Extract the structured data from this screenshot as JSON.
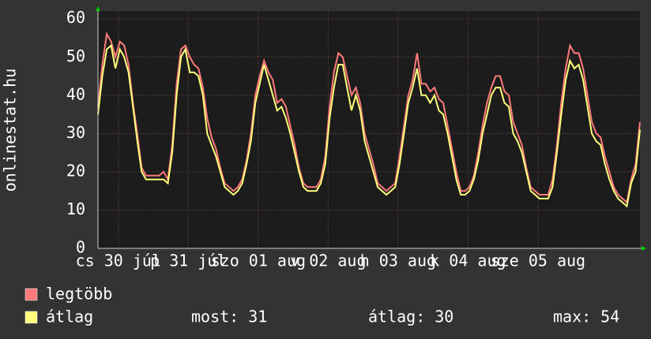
{
  "chart_data": {
    "type": "line",
    "y_label": "onlinestat.hu",
    "x": [
      5,
      6.5,
      8,
      9.5,
      11,
      12.5,
      14,
      15.5,
      17,
      18.5,
      20,
      21.5,
      23,
      24.5,
      26,
      27.5,
      29,
      30.5,
      32,
      33.5,
      35,
      36.5,
      38,
      39.5,
      41,
      42.5,
      44,
      45.5,
      47,
      48.5,
      50,
      51.5,
      53,
      54.5,
      56,
      57.5,
      59,
      60.5,
      62,
      63.5,
      65,
      66.5,
      68,
      69.5,
      71,
      72.5,
      74,
      75.5,
      77,
      78.5,
      80,
      81.5,
      83,
      84.5,
      86,
      87.5,
      89,
      90.5,
      92,
      93.5,
      95,
      96.5,
      98,
      99.5,
      101,
      102.5,
      104,
      105.5,
      107,
      108.5,
      110,
      111.5,
      113,
      114.5,
      116,
      117.5,
      119,
      120.5,
      122,
      123.5,
      125,
      126.5,
      128,
      129.5,
      131,
      132.5,
      134,
      135.5,
      137,
      138.5,
      140,
      141.5,
      143,
      144.5,
      146,
      147.5,
      149,
      150.5,
      152,
      153.5,
      155,
      156.5,
      158,
      159.5,
      161,
      162.5,
      164,
      165.5,
      167,
      168.5,
      170,
      171.5,
      173,
      174.5,
      176,
      177.5,
      179,
      180.5,
      182,
      183.5,
      185,
      186.5,
      188,
      189.5,
      191
    ],
    "series": [
      {
        "name": "legtöbb",
        "color": "#ff7a7a",
        "values": [
          37,
          48,
          56,
          54,
          50,
          54,
          53,
          48,
          38,
          30,
          21,
          19,
          19,
          19,
          19,
          20,
          18,
          27,
          43,
          52,
          53,
          50,
          48,
          47,
          42,
          34,
          29,
          26,
          21,
          17,
          16,
          15,
          16,
          18,
          23,
          30,
          40,
          45,
          49,
          46,
          44,
          38,
          39,
          37,
          32,
          27,
          21,
          17,
          16,
          16,
          16,
          18,
          24,
          37,
          46,
          51,
          50,
          45,
          40,
          42,
          38,
          30,
          26,
          22,
          17,
          16,
          15,
          16,
          17,
          24,
          32,
          40,
          44,
          51,
          43,
          43,
          41,
          42,
          39,
          38,
          32,
          26,
          20,
          15,
          15,
          16,
          19,
          25,
          32,
          38,
          42,
          45,
          45,
          41,
          40,
          33,
          30,
          27,
          21,
          16,
          15,
          14,
          14,
          14,
          18,
          27,
          38,
          47,
          53,
          51,
          51,
          47,
          40,
          33,
          30,
          29,
          24,
          20,
          16,
          14,
          13,
          12,
          18,
          22,
          33
        ]
      },
      {
        "name": "átlag",
        "color": "#ffff7a",
        "values": [
          35,
          45,
          52,
          53,
          47,
          52,
          50,
          46,
          37,
          28,
          20,
          18,
          18,
          18,
          18,
          18,
          17,
          25,
          40,
          50,
          52,
          46,
          46,
          45,
          40,
          30,
          27,
          24,
          20,
          16,
          15,
          14,
          15,
          17,
          22,
          28,
          38,
          43,
          48,
          44,
          40,
          36,
          37,
          34,
          30,
          25,
          20,
          16,
          15,
          15,
          15,
          17,
          22,
          34,
          42,
          48,
          48,
          42,
          36,
          40,
          36,
          28,
          24,
          20,
          16,
          15,
          14,
          15,
          16,
          22,
          30,
          38,
          42,
          47,
          40,
          40,
          38,
          40,
          36,
          35,
          30,
          24,
          18,
          14,
          14,
          15,
          18,
          23,
          30,
          35,
          40,
          42,
          42,
          38,
          37,
          30,
          28,
          25,
          20,
          15,
          14,
          13,
          13,
          13,
          16,
          25,
          35,
          44,
          49,
          47,
          48,
          44,
          37,
          30,
          28,
          27,
          22,
          18,
          15,
          13,
          12,
          11,
          17,
          20,
          31
        ]
      }
    ],
    "xlim": [
      5,
      191
    ],
    "xticks": [
      {
        "value": 12,
        "label": "cs 30 júl"
      },
      {
        "value": 36,
        "label": "p 31 júl"
      },
      {
        "value": 60,
        "label": "szo 01 aug"
      },
      {
        "value": 84,
        "label": "v 02 aug"
      },
      {
        "value": 108,
        "label": "h 03 aug"
      },
      {
        "value": 132,
        "label": "k 04 aug"
      },
      {
        "value": 156,
        "label": "sze 05 aug"
      }
    ],
    "ylim": [
      0,
      62
    ],
    "yticks": [
      0,
      10,
      20,
      30,
      40,
      50,
      60
    ],
    "grid": true,
    "stats": [
      {
        "label": "most:",
        "value": 31
      },
      {
        "label": "átlag:",
        "value": 30
      },
      {
        "label": "max:",
        "value": 54
      }
    ]
  }
}
